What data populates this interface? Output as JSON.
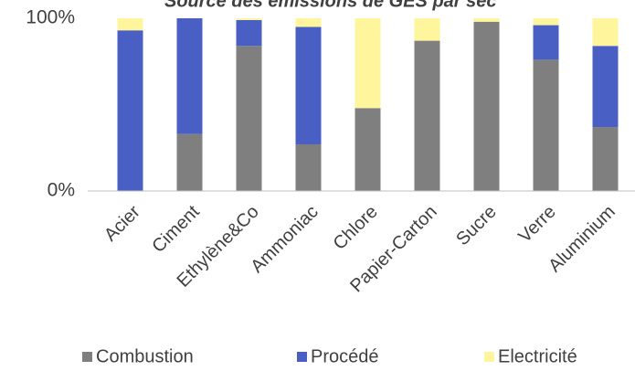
{
  "chart_data": {
    "type": "stacked_bar",
    "title": "Source des émissions de GES par sec",
    "categories": [
      "Acier",
      "Ciment",
      "Ethylène&Co",
      "Ammoniac",
      "Chlore",
      "Papier-Carton",
      "Sucre",
      "Verre",
      "Aluminium"
    ],
    "series": [
      {
        "name": "Combustion",
        "color": "#7f7f7f",
        "values": [
          0,
          33,
          84,
          27,
          48,
          87,
          98,
          76,
          37
        ]
      },
      {
        "name": "Procédé",
        "color": "#4a5fc4",
        "values": [
          93,
          67,
          15,
          68,
          0,
          0,
          0,
          20,
          47
        ]
      },
      {
        "name": "Electricité",
        "color": "#fff59d",
        "values": [
          7,
          0,
          1,
          5,
          52,
          13,
          2,
          4,
          16
        ]
      }
    ],
    "ylim": [
      0,
      100
    ],
    "yticks": [
      {
        "value": 0,
        "label": "0%"
      },
      {
        "value": 100,
        "label": "100%"
      }
    ],
    "legend": "bottom"
  }
}
